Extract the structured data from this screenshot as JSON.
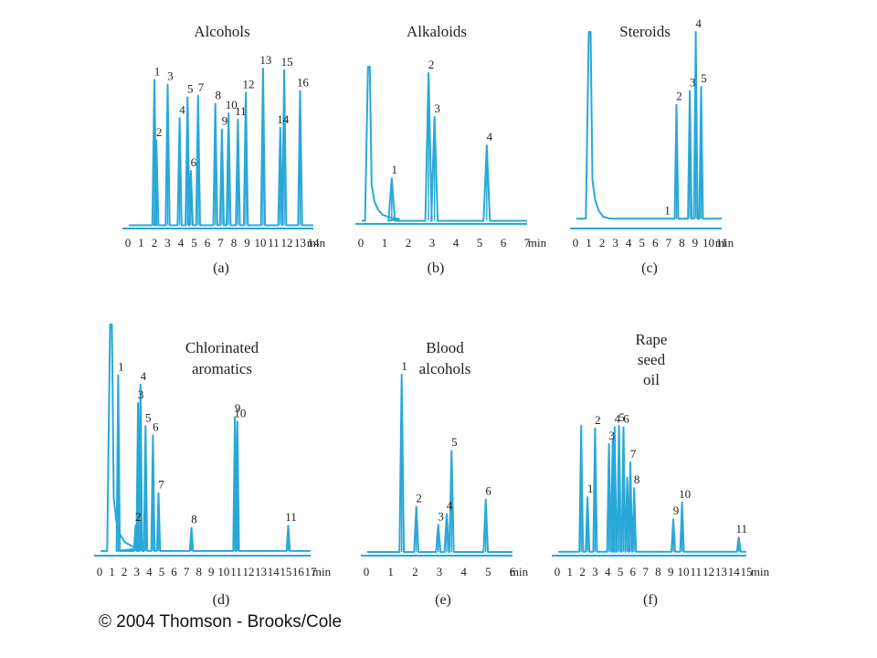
{
  "figure": {
    "copyright": "© 2004 Thomson - Brooks/Cole"
  },
  "chart_data": [
    {
      "type": "line",
      "panel_label": "(a)",
      "title_lines": [
        "Alcohols"
      ],
      "x_unit": "min",
      "x_ticks": [
        0,
        1,
        2,
        3,
        4,
        5,
        6,
        7,
        8,
        9,
        10,
        11,
        12,
        13,
        14
      ],
      "xlim": [
        0,
        14
      ],
      "baseline": 0.02,
      "peaks": [
        {
          "label": "1",
          "t": 2.0,
          "h": 0.93
        },
        {
          "label": "2",
          "t": 2.15,
          "h": 0.55
        },
        {
          "label": "3",
          "t": 3.0,
          "h": 0.9
        },
        {
          "label": "4",
          "t": 3.9,
          "h": 0.69
        },
        {
          "label": "5",
          "t": 4.5,
          "h": 0.82
        },
        {
          "label": "6",
          "t": 4.75,
          "h": 0.36
        },
        {
          "label": "7",
          "t": 5.3,
          "h": 0.83
        },
        {
          "label": "8",
          "t": 6.6,
          "h": 0.78
        },
        {
          "label": "9",
          "t": 7.1,
          "h": 0.62
        },
        {
          "label": "10",
          "t": 7.6,
          "h": 0.72
        },
        {
          "label": "11",
          "t": 8.3,
          "h": 0.68
        },
        {
          "label": "12",
          "t": 8.9,
          "h": 0.85
        },
        {
          "label": "13",
          "t": 10.2,
          "h": 1.0
        },
        {
          "label": "14",
          "t": 11.5,
          "h": 0.63
        },
        {
          "label": "15",
          "t": 11.8,
          "h": 0.99
        },
        {
          "label": "16",
          "t": 13.0,
          "h": 0.86
        }
      ]
    },
    {
      "type": "line",
      "panel_label": "(b)",
      "title_lines": [
        "Alkaloids"
      ],
      "x_unit": "min",
      "x_ticks": [
        0,
        1,
        2,
        3,
        4,
        5,
        6,
        7
      ],
      "xlim": [
        0,
        7
      ],
      "baseline": 0.02,
      "solvent_front": {
        "t": 0.3,
        "h": 1.0
      },
      "peaks": [
        {
          "label": "1",
          "t": 1.3,
          "h": 0.29
        },
        {
          "label": "2",
          "t": 2.85,
          "h": 0.96
        },
        {
          "label": "3",
          "t": 3.1,
          "h": 0.68
        },
        {
          "label": "4",
          "t": 5.3,
          "h": 0.5
        }
      ]
    },
    {
      "type": "line",
      "panel_label": "(c)",
      "title_lines": [
        "Steroids"
      ],
      "x_unit": "min",
      "x_ticks": [
        0,
        1,
        2,
        3,
        4,
        5,
        6,
        7,
        8,
        9,
        10,
        11
      ],
      "xlim": [
        0,
        11
      ],
      "baseline": 0.05,
      "solvent_front": {
        "t": 1.0,
        "h": 1.0
      },
      "peaks": [
        {
          "label": "1",
          "t": 6.7,
          "h": 0.05
        },
        {
          "label": "2",
          "t": 7.6,
          "h": 0.63
        },
        {
          "label": "3",
          "t": 8.6,
          "h": 0.7
        },
        {
          "label": "4",
          "t": 9.05,
          "h": 1.0
        },
        {
          "label": "5",
          "t": 9.45,
          "h": 0.72
        }
      ]
    },
    {
      "type": "line",
      "panel_label": "(d)",
      "title_lines": [
        "Chlorinated",
        "aromatics"
      ],
      "x_unit": "min",
      "x_ticks": [
        0,
        1,
        2,
        3,
        4,
        5,
        6,
        7,
        8,
        9,
        10,
        11,
        12,
        13,
        14,
        15,
        16,
        17
      ],
      "xlim": [
        0,
        17
      ],
      "baseline": 0.02,
      "solvent_front": {
        "t": 0.85,
        "h": 1.0
      },
      "peaks": [
        {
          "label": "1",
          "t": 1.5,
          "h": 0.78
        },
        {
          "label": "2",
          "t": 2.9,
          "h": 0.13
        },
        {
          "label": "3",
          "t": 3.1,
          "h": 0.66
        },
        {
          "label": "4",
          "t": 3.3,
          "h": 0.74
        },
        {
          "label": "5",
          "t": 3.7,
          "h": 0.56
        },
        {
          "label": "6",
          "t": 4.3,
          "h": 0.52
        },
        {
          "label": "7",
          "t": 4.75,
          "h": 0.27
        },
        {
          "label": "8",
          "t": 7.4,
          "h": 0.12
        },
        {
          "label": "9",
          "t": 10.9,
          "h": 0.6
        },
        {
          "label": "10",
          "t": 11.1,
          "h": 0.58
        },
        {
          "label": "11",
          "t": 15.2,
          "h": 0.13
        }
      ]
    },
    {
      "type": "line",
      "panel_label": "(e)",
      "title_lines": [
        "Blood",
        "alcohols"
      ],
      "x_unit": "min",
      "x_ticks": [
        0,
        1,
        2,
        3,
        4,
        5,
        6
      ],
      "xlim": [
        0,
        6
      ],
      "baseline": 0.02,
      "peaks": [
        {
          "label": "1",
          "t": 1.45,
          "h": 1.0
        },
        {
          "label": "2",
          "t": 2.05,
          "h": 0.27
        },
        {
          "label": "3",
          "t": 2.95,
          "h": 0.17
        },
        {
          "label": "4",
          "t": 3.3,
          "h": 0.23
        },
        {
          "label": "5",
          "t": 3.5,
          "h": 0.58
        },
        {
          "label": "6",
          "t": 4.9,
          "h": 0.31
        }
      ]
    },
    {
      "type": "line",
      "panel_label": "(f)",
      "title_lines": [
        "Rape",
        "seed",
        "oil"
      ],
      "x_unit": "min",
      "x_ticks": [
        0,
        1,
        2,
        3,
        4,
        5,
        6,
        7,
        8,
        9,
        10,
        11,
        12,
        13,
        14,
        15
      ],
      "xlim": [
        0,
        15
      ],
      "baseline": 0.03,
      "peaks": [
        {
          "label": "",
          "t": 1.9,
          "h": 1.0
        },
        {
          "label": "1",
          "t": 2.4,
          "h": 0.45
        },
        {
          "label": "2",
          "t": 3.0,
          "h": 0.98
        },
        {
          "label": "3",
          "t": 4.1,
          "h": 0.86
        },
        {
          "label": "",
          "t": 4.4,
          "h": 0.9
        },
        {
          "label": "4",
          "t": 4.55,
          "h": 0.99
        },
        {
          "label": "5",
          "t": 4.9,
          "h": 1.0
        },
        {
          "label": "6",
          "t": 5.25,
          "h": 0.99
        },
        {
          "label": "",
          "t": 5.55,
          "h": 0.6
        },
        {
          "label": "7",
          "t": 5.8,
          "h": 0.72
        },
        {
          "label": "8",
          "t": 6.1,
          "h": 0.52
        },
        {
          "label": "9",
          "t": 9.2,
          "h": 0.28
        },
        {
          "label": "10",
          "t": 9.9,
          "h": 0.41
        },
        {
          "label": "11",
          "t": 14.4,
          "h": 0.14
        }
      ]
    }
  ]
}
